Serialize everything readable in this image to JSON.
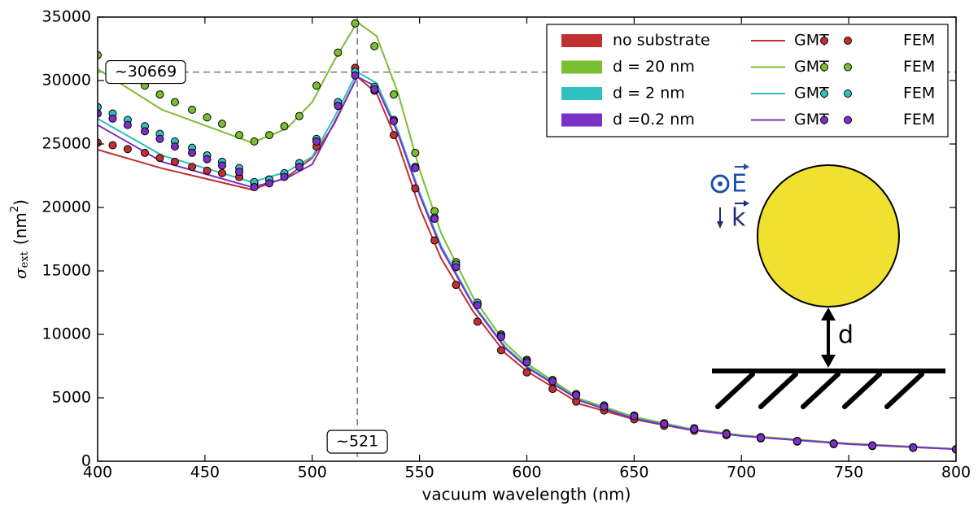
{
  "chart_data": {
    "type": "line",
    "xlabel": "vacuum wavelength (nm)",
    "ylabel_parts": [
      "σ",
      "ext",
      "(nm",
      "2",
      ")"
    ],
    "xlim": [
      400,
      800
    ],
    "ylim": [
      0,
      35000
    ],
    "xticks": [
      400,
      450,
      500,
      550,
      600,
      650,
      700,
      750,
      800
    ],
    "yticks": [
      0,
      5000,
      10000,
      15000,
      20000,
      25000,
      30000,
      35000
    ],
    "legend": "upper right",
    "x": [
      400,
      430,
      472,
      488,
      500,
      510,
      521,
      530,
      540,
      550,
      560,
      575,
      590,
      600,
      625,
      650,
      675,
      700,
      750,
      800
    ],
    "marker_x": [
      400,
      407,
      414,
      422,
      429,
      436,
      444,
      451,
      458,
      466,
      473,
      480,
      487,
      494,
      502,
      512,
      520,
      529,
      538,
      548,
      557,
      567,
      577,
      588,
      600,
      612,
      623,
      636,
      650,
      664,
      678,
      693,
      709,
      726,
      743,
      761,
      780,
      800
    ],
    "series": [
      {
        "name": "no substrate",
        "color": "#c03030",
        "line": {
          "label": "GMT",
          "values": [
            24550,
            23080,
            21400,
            22370,
            23900,
            26500,
            30300,
            29000,
            25000,
            20000,
            16000,
            11800,
            8500,
            7100,
            4500,
            3300,
            2500,
            2000,
            1350,
            950
          ]
        },
        "markers": {
          "label": "FEM",
          "values": [
            25100,
            24900,
            24600,
            24300,
            23900,
            23600,
            23200,
            22900,
            22700,
            22400,
            21900,
            22200,
            22600,
            23400,
            24800,
            28100,
            31000,
            29200,
            25700,
            21500,
            17400,
            13900,
            11000,
            8750,
            7000,
            5700,
            4700,
            4000,
            3300,
            2800,
            2400,
            2050,
            1800,
            1550,
            1350,
            1200,
            1050,
            920
          ]
        }
      },
      {
        "name": "d = 20 nm",
        "color": "#7bbe32",
        "line": {
          "label": "GMT",
          "values": [
            30900,
            27700,
            25100,
            26200,
            28300,
            31500,
            34600,
            33500,
            29000,
            23000,
            18000,
            12900,
            9300,
            7700,
            4900,
            3500,
            2600,
            2050,
            1400,
            980
          ]
        },
        "markers": {
          "label": "FEM",
          "values": [
            32000,
            31000,
            30200,
            29600,
            28900,
            28300,
            27700,
            27100,
            26600,
            25700,
            25200,
            25700,
            26400,
            27200,
            29600,
            32200,
            34500,
            32700,
            28900,
            24300,
            19700,
            15700,
            12400,
            10000,
            8000,
            6400,
            5300,
            4400,
            3600,
            3000,
            2600,
            2200,
            1900,
            1600,
            1400,
            1250,
            1100,
            950
          ]
        }
      },
      {
        "name": "d = 2 nm",
        "color": "#30c0c0",
        "line": {
          "label": "GMT",
          "values": [
            27000,
            24100,
            22000,
            22800,
            24000,
            27000,
            30669,
            29800,
            26000,
            21200,
            17000,
            12400,
            9000,
            7500,
            4800,
            3400,
            2550,
            2000,
            1370,
            960
          ]
        },
        "markers": {
          "label": "FEM",
          "values": [
            27900,
            27400,
            26900,
            26400,
            25800,
            25200,
            24700,
            24100,
            23600,
            23100,
            22000,
            22200,
            22700,
            23500,
            25400,
            28300,
            30700,
            29500,
            26900,
            23200,
            19200,
            15500,
            12500,
            9900,
            7900,
            6400,
            5300,
            4400,
            3600,
            3000,
            2600,
            2200,
            1900,
            1600,
            1400,
            1250,
            1100,
            950
          ]
        }
      },
      {
        "name": "d =0.2 nm",
        "color": "#7b30c8",
        "line": {
          "label": "GMT",
          "values": [
            26500,
            23600,
            21600,
            22300,
            23400,
            26600,
            30300,
            29500,
            25800,
            21000,
            16800,
            12300,
            8900,
            7400,
            4750,
            3350,
            2520,
            1990,
            1360,
            950
          ]
        },
        "markers": {
          "label": "FEM",
          "values": [
            27400,
            27000,
            26500,
            26000,
            25400,
            24800,
            24300,
            23800,
            23300,
            22800,
            21600,
            21900,
            22400,
            23200,
            25200,
            28000,
            30400,
            29300,
            26800,
            23100,
            19100,
            15300,
            12300,
            9800,
            7800,
            6300,
            5200,
            4300,
            3550,
            2950,
            2550,
            2150,
            1850,
            1580,
            1380,
            1230,
            1080,
            940
          ]
        }
      }
    ],
    "annotations": [
      {
        "axis": "y",
        "value": 30669,
        "label": "~30669"
      },
      {
        "axis": "x",
        "value": 521,
        "label": "~521"
      }
    ],
    "inset": {
      "field": "E",
      "wavevector": "k",
      "gap": "d"
    }
  }
}
